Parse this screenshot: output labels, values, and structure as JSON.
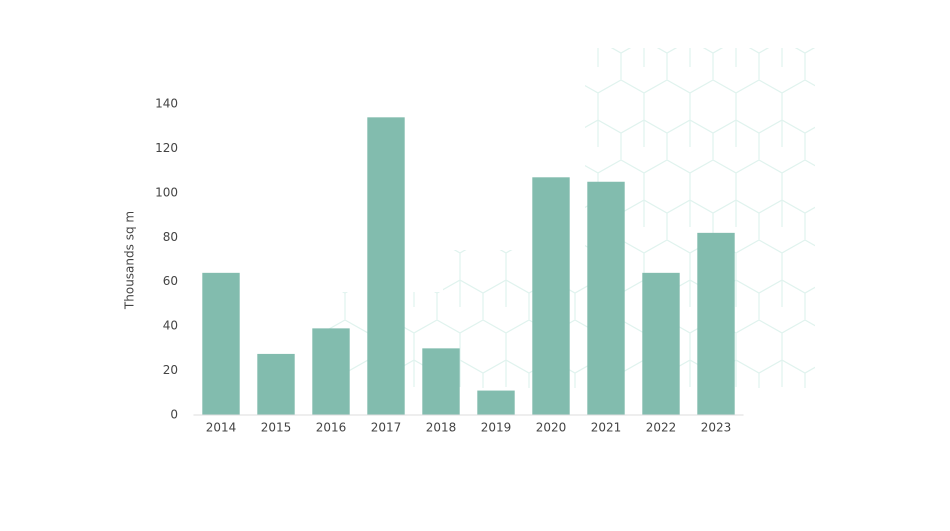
{
  "chart_data": {
    "type": "bar",
    "y_label": "Thousands sq m",
    "categories": [
      "2014",
      "2015",
      "2016",
      "2017",
      "2018",
      "2019",
      "2020",
      "2021",
      "2022",
      "2023"
    ],
    "values": [
      64,
      27.5,
      39,
      134,
      30,
      11,
      107,
      105,
      64,
      82
    ],
    "color": "#82bcae",
    "ylim": [
      0,
      140
    ],
    "yticks": [
      0,
      20,
      40,
      60,
      80,
      100,
      120,
      140
    ],
    "grid": false
  }
}
